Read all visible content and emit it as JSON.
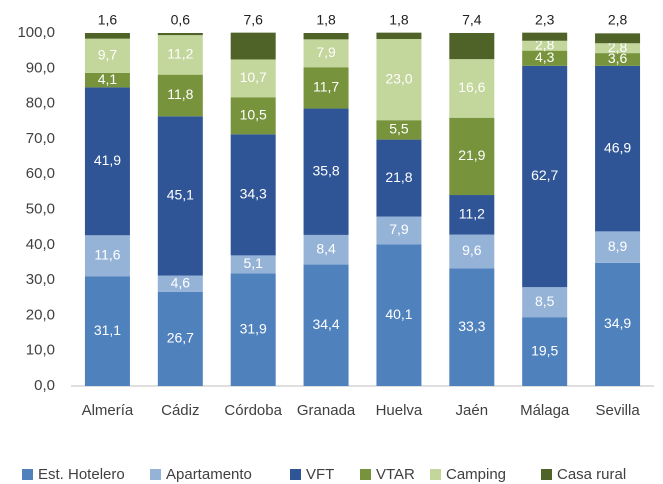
{
  "chart_data": {
    "type": "stacked_bar",
    "categories": [
      "Almería",
      "Cádiz",
      "Córdoba",
      "Granada",
      "Huelva",
      "Jaén",
      "Málaga",
      "Sevilla"
    ],
    "series": [
      {
        "name": "Est. Hotelero",
        "color": "#4f81bd",
        "values": [
          31.1,
          26.7,
          31.9,
          34.4,
          40.1,
          33.3,
          19.5,
          34.9
        ],
        "value_labels": [
          "31,1",
          "26,7",
          "31,9",
          "34,4",
          "40,1",
          "33,3",
          "19,5",
          "34,9"
        ]
      },
      {
        "name": "Apartamento",
        "color": "#95b3d7",
        "values": [
          11.6,
          4.6,
          5.1,
          8.4,
          7.9,
          9.6,
          8.5,
          8.9
        ],
        "value_labels": [
          "11,6",
          "4,6",
          "5,1",
          "8,4",
          "7,9",
          "9,6",
          "8,5",
          "8,9"
        ]
      },
      {
        "name": "VFT",
        "color": "#2f5597",
        "values": [
          41.9,
          45.1,
          34.3,
          35.8,
          21.8,
          11.2,
          62.7,
          46.9
        ],
        "value_labels": [
          "41,9",
          "45,1",
          "34,3",
          "35,8",
          "21,8",
          "11,2",
          "62,7",
          "46,9"
        ]
      },
      {
        "name": "VTAR",
        "color": "#77933c",
        "values": [
          4.1,
          11.8,
          10.5,
          11.7,
          5.5,
          21.9,
          4.3,
          3.6
        ],
        "value_labels": [
          "4,1",
          "11,8",
          "10,5",
          "11,7",
          "5,5",
          "21,9",
          "4,3",
          "3,6"
        ]
      },
      {
        "name": "Camping",
        "color": "#c3d69b",
        "values": [
          9.7,
          11.2,
          10.7,
          7.9,
          23.0,
          16.6,
          2.8,
          2.8
        ],
        "value_labels": [
          "9,7",
          "11,2",
          "10,7",
          "7,9",
          "23,0",
          "16,6",
          "2,8",
          "2,8"
        ]
      },
      {
        "name": "Casa rural",
        "color": "#4f6228",
        "values": [
          1.6,
          0.6,
          7.6,
          1.8,
          1.8,
          7.4,
          2.3,
          2.8
        ],
        "value_labels": [
          "1,6",
          "0,6",
          "7,6",
          "1,8",
          "1,8",
          "7,4",
          "2,3",
          "2,8"
        ]
      }
    ],
    "ylim": [
      0,
      100
    ],
    "yticks": [
      {
        "value": 0,
        "label": "0,0"
      },
      {
        "value": 10,
        "label": "10,0"
      },
      {
        "value": 20,
        "label": "20,0"
      },
      {
        "value": 30,
        "label": "30,0"
      },
      {
        "value": 40,
        "label": "40,0"
      },
      {
        "value": 50,
        "label": "50,0"
      },
      {
        "value": 60,
        "label": "60,0"
      },
      {
        "value": 70,
        "label": "70,0"
      },
      {
        "value": 80,
        "label": "80,0"
      },
      {
        "value": 90,
        "label": "90,0"
      },
      {
        "value": 100,
        "label": "100,0"
      }
    ],
    "legend": "bottom"
  }
}
